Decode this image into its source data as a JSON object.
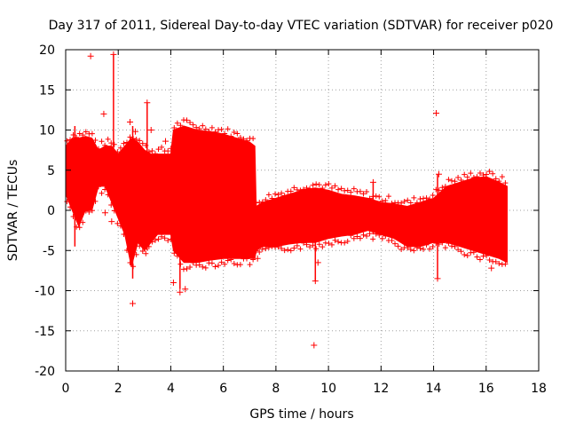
{
  "chart_data": {
    "type": "scatter",
    "title": "Day 317 of 2011, Sidereal Day-to-day VTEC variation (SDTVAR) for receiver p020",
    "xlabel": "GPS time / hours",
    "ylabel": "SDTVAR / TECUs",
    "xlim": [
      0,
      18
    ],
    "ylim": [
      -20,
      20
    ],
    "xticks": [
      0,
      2,
      4,
      6,
      8,
      10,
      12,
      14,
      16,
      18
    ],
    "yticks": [
      -20,
      -15,
      -10,
      -5,
      0,
      5,
      10,
      15,
      20
    ],
    "grid": true,
    "marker": "+",
    "color": "#ff0000",
    "series": [
      {
        "name": "SDTVAR",
        "band": {
          "x": [
            0.0,
            0.25,
            0.5,
            0.75,
            1.0,
            1.25,
            1.5,
            1.75,
            2.0,
            2.25,
            2.5,
            2.75,
            3.0,
            3.25,
            3.5,
            3.75,
            4.0,
            4.1,
            4.5,
            5.0,
            5.5,
            6.0,
            6.5,
            7.0,
            7.2,
            7.25,
            7.5,
            8.0,
            8.5,
            9.0,
            9.5,
            10.0,
            10.5,
            11.0,
            11.5,
            12.0,
            12.5,
            13.0,
            13.5,
            14.0,
            14.5,
            15.0,
            15.5,
            16.0,
            16.5,
            16.8
          ],
          "upper": [
            8.0,
            9.0,
            9.0,
            9.2,
            9.0,
            7.5,
            8.0,
            8.0,
            7.0,
            8.0,
            9.0,
            8.5,
            7.5,
            7.0,
            7.0,
            7.0,
            7.0,
            10.0,
            10.5,
            10.0,
            9.8,
            9.5,
            9.0,
            8.5,
            8.0,
            0.5,
            1.0,
            1.5,
            2.0,
            2.5,
            2.8,
            2.5,
            2.0,
            1.8,
            1.5,
            1.0,
            0.8,
            0.5,
            1.0,
            1.5,
            3.0,
            3.5,
            4.0,
            4.2,
            3.5,
            3.0
          ],
          "lower": [
            2.0,
            0.0,
            -2.0,
            0.0,
            0.0,
            3.0,
            3.0,
            1.0,
            -1.0,
            -3.0,
            -7.0,
            -4.0,
            -5.0,
            -4.0,
            -3.0,
            -3.0,
            -3.0,
            -5.0,
            -6.5,
            -6.5,
            -6.2,
            -6.0,
            -6.0,
            -6.0,
            -6.0,
            -5.0,
            -4.5,
            -4.5,
            -4.2,
            -4.0,
            -4.0,
            -3.5,
            -3.2,
            -3.0,
            -2.5,
            -3.0,
            -3.5,
            -4.5,
            -4.5,
            -4.0,
            -4.0,
            -4.5,
            -5.0,
            -5.5,
            -6.0,
            -6.5
          ]
        },
        "outliers": [
          [
            0.95,
            19.2
          ],
          [
            1.82,
            19.4
          ],
          [
            1.75,
            -1.4
          ],
          [
            1.5,
            -0.3
          ],
          [
            1.45,
            12.0
          ],
          [
            2.45,
            11.0
          ],
          [
            2.55,
            -11.6
          ],
          [
            2.65,
            9.8
          ],
          [
            3.1,
            13.4
          ],
          [
            3.25,
            10.0
          ],
          [
            3.8,
            8.6
          ],
          [
            4.1,
            -9.0
          ],
          [
            4.35,
            -10.2
          ],
          [
            4.55,
            -9.8
          ],
          [
            7.3,
            -6.0
          ],
          [
            9.45,
            -16.8
          ],
          [
            9.5,
            -8.8
          ],
          [
            9.6,
            -6.5
          ],
          [
            11.7,
            3.5
          ],
          [
            14.1,
            12.1
          ],
          [
            14.15,
            -8.5
          ],
          [
            14.2,
            4.5
          ],
          [
            15.3,
            3.0
          ],
          [
            16.2,
            -7.2
          ]
        ],
        "spikes": [
          [
            1.82,
            3.0,
            19.4
          ],
          [
            2.55,
            -8.5,
            10.5
          ],
          [
            3.1,
            -5.0,
            13.4
          ],
          [
            4.35,
            -9.8,
            10.0
          ],
          [
            9.5,
            -8.8,
            2.6
          ],
          [
            14.15,
            -8.5,
            4.5
          ],
          [
            11.7,
            -3.0,
            3.5
          ],
          [
            0.35,
            -4.5,
            10.5
          ]
        ]
      }
    ]
  }
}
